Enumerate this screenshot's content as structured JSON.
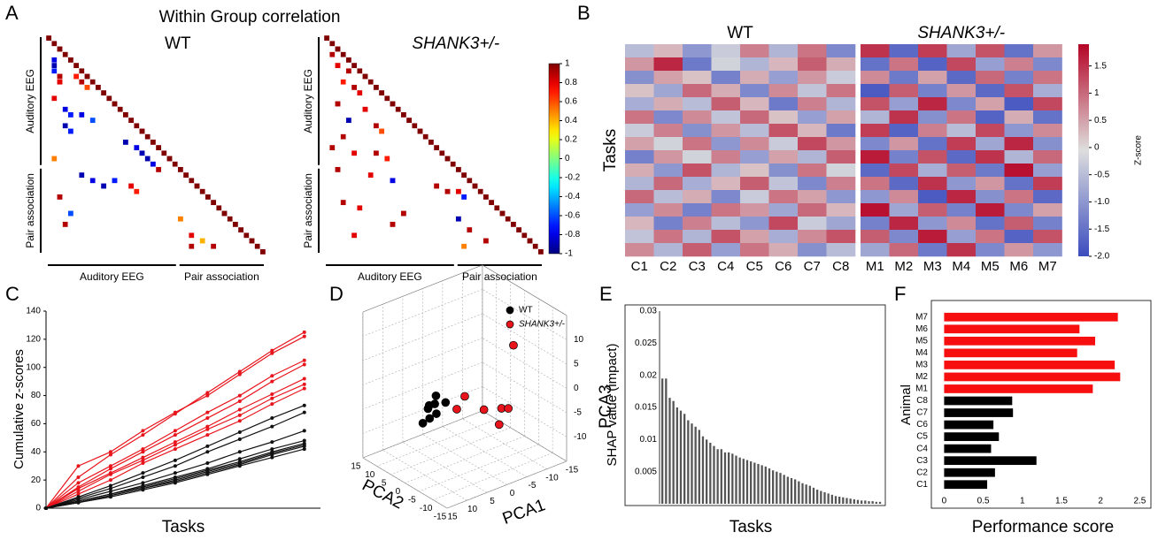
{
  "chart_data": [
    {
      "type": "triangle-heatmap",
      "label": "A",
      "title": "Within Group correlation",
      "size": 40,
      "diagonal": 1,
      "groups": [
        {
          "name": "Auditory EEG",
          "start": 0,
          "end": 24
        },
        {
          "name": "Pair association",
          "start": 24,
          "end": 40
        }
      ],
      "colorbar": {
        "lim": [
          -1,
          1
        ],
        "ticks": [
          1,
          0.8,
          0.6,
          0.4,
          0.2,
          0,
          -0.2,
          -0.4,
          -0.6,
          -0.8,
          -1
        ]
      },
      "matrices": [
        {
          "title": "WT",
          "italic": false,
          "cells": [
            [
              4,
              1,
              -0.8
            ],
            [
              5,
              1,
              -0.9
            ],
            [
              6,
              1,
              -0.7
            ],
            [
              7,
              2,
              0.9
            ],
            [
              8,
              2,
              0.8
            ],
            [
              7,
              5,
              0.7
            ],
            [
              8,
              6,
              0.9
            ],
            [
              9,
              7,
              0.6
            ],
            [
              11,
              1,
              0.8
            ],
            [
              13,
              3,
              -0.8
            ],
            [
              14,
              4,
              -0.7
            ],
            [
              14,
              6,
              -0.8
            ],
            [
              15,
              8,
              -0.6
            ],
            [
              16,
              3,
              -0.9
            ],
            [
              17,
              4,
              -0.7
            ],
            [
              19,
              14,
              -0.9
            ],
            [
              20,
              16,
              -0.8
            ],
            [
              21,
              17,
              -0.9
            ],
            [
              22,
              18,
              -0.9
            ],
            [
              23,
              19,
              -0.8
            ],
            [
              24,
              20,
              0.9
            ],
            [
              22,
              1,
              0.5
            ],
            [
              25,
              6,
              -0.9
            ],
            [
              26,
              8,
              -0.8
            ],
            [
              26,
              12,
              -0.7
            ],
            [
              27,
              10,
              -0.9
            ],
            [
              27,
              15,
              0.8
            ],
            [
              28,
              16,
              0.7
            ],
            [
              29,
              2,
              0.9
            ],
            [
              32,
              4,
              -0.6
            ],
            [
              34,
              3,
              0.9
            ],
            [
              36,
              26,
              0.8
            ],
            [
              37,
              28,
              0.4
            ],
            [
              38,
              26,
              0.9
            ],
            [
              38,
              30,
              0.9
            ],
            [
              33,
              24,
              0.5
            ]
          ]
        },
        {
          "title": "SHANK3+/-",
          "italic": true,
          "cells": [
            [
              3,
              1,
              0.9
            ],
            [
              5,
              2,
              0.8
            ],
            [
              6,
              4,
              0.9
            ],
            [
              8,
              3,
              0.7
            ],
            [
              9,
              5,
              0.9
            ],
            [
              10,
              6,
              0.8
            ],
            [
              12,
              2,
              0.9
            ],
            [
              13,
              7,
              0.8
            ],
            [
              15,
              4,
              -0.9
            ],
            [
              16,
              9,
              0.9
            ],
            [
              17,
              10,
              0.6
            ],
            [
              18,
              3,
              0.9
            ],
            [
              20,
              1,
              0.9
            ],
            [
              21,
              5,
              0.8
            ],
            [
              21,
              9,
              0.9
            ],
            [
              22,
              11,
              0.7
            ],
            [
              24,
              2,
              0.9
            ],
            [
              25,
              8,
              0.8
            ],
            [
              26,
              12,
              -0.8
            ],
            [
              27,
              20,
              0.9
            ],
            [
              28,
              22,
              0.9
            ],
            [
              28,
              24,
              0.8
            ],
            [
              29,
              25,
              -0.7
            ],
            [
              30,
              3,
              0.9
            ],
            [
              31,
              6,
              0.8
            ],
            [
              32,
              14,
              0.9
            ],
            [
              33,
              24,
              -0.9
            ],
            [
              34,
              12,
              0.9
            ],
            [
              35,
              26,
              0.9
            ],
            [
              36,
              5,
              0.8
            ],
            [
              37,
              29,
              0.9
            ],
            [
              38,
              25,
              0.5
            ]
          ]
        }
      ]
    },
    {
      "type": "heatmap",
      "label": "B",
      "ylabel": "Tasks",
      "groups": [
        {
          "title": "WT",
          "italic": false,
          "start": 0,
          "end": 8
        },
        {
          "title": "SHANK3+/-",
          "italic": true,
          "start": 8,
          "end": 15
        }
      ],
      "columns": [
        "C1",
        "C2",
        "C3",
        "C4",
        "C5",
        "C6",
        "C7",
        "C8",
        "M1",
        "M2",
        "M3",
        "M4",
        "M5",
        "M6",
        "M7"
      ],
      "colorbar": {
        "label": "Z-score",
        "lim": [
          -2,
          1.9
        ],
        "ticks": [
          1.5,
          1,
          0.5,
          0,
          -0.5,
          {
            "value": -1,
            "label": "-1.0"
          },
          -1.5,
          {
            "value": -2,
            "label": "-2.0"
          }
        ]
      },
      "rows": [
        [
          -0.5,
          0.3,
          -1.0,
          -0.3,
          0.8,
          -0.6,
          0.9,
          -1.2,
          1.5,
          -1.6,
          1.4,
          -0.8,
          1.2,
          -1.5,
          0.6
        ],
        [
          0.6,
          1.6,
          -1.4,
          -0.2,
          -0.6,
          0.3,
          1.1,
          0.4,
          -1.5,
          0.9,
          -1.7,
          1.3,
          -0.9,
          0.8,
          -1.2
        ],
        [
          -1.1,
          0.5,
          0.2,
          -1.3,
          0.4,
          -0.9,
          0.6,
          -0.3,
          0.7,
          -1.4,
          0.5,
          -1.6,
          1.0,
          -1.3,
          0.9
        ],
        [
          0.2,
          -0.8,
          1.0,
          0.4,
          -1.2,
          0.7,
          -0.4,
          0.9,
          -1.8,
          1.1,
          -1.3,
          0.6,
          -1.6,
          1.2,
          -0.7
        ],
        [
          -0.7,
          0.4,
          -0.5,
          1.1,
          0.3,
          -1.4,
          0.8,
          -0.6,
          1.2,
          -0.9,
          1.6,
          -1.2,
          0.5,
          -1.8,
          1.3
        ],
        [
          0.9,
          -1.2,
          0.7,
          -0.4,
          1.0,
          0.2,
          -0.9,
          0.5,
          -0.6,
          1.5,
          -1.1,
          0.9,
          -1.7,
          0.4,
          -1.5
        ],
        [
          -0.3,
          0.8,
          -1.1,
          0.6,
          -0.5,
          1.2,
          0.3,
          -1.4,
          1.4,
          -1.7,
          0.8,
          -0.5,
          1.3,
          -1.0,
          0.7
        ],
        [
          0.5,
          -0.2,
          0.9,
          -1.0,
          0.7,
          -0.3,
          1.3,
          0.6,
          -1.2,
          0.6,
          -1.5,
          1.4,
          -0.8,
          1.6,
          -1.1
        ],
        [
          -1.3,
          0.6,
          -0.2,
          0.8,
          -0.9,
          0.5,
          -0.6,
          1.1,
          1.7,
          -1.3,
          1.2,
          -1.6,
          1.5,
          -0.6,
          1.0
        ],
        [
          0.4,
          -1.0,
          1.2,
          -0.6,
          0.2,
          -1.1,
          0.9,
          -0.2,
          -1.6,
          1.3,
          -0.7,
          1.1,
          -1.4,
          1.8,
          -0.9
        ],
        [
          -0.6,
          1.0,
          -0.7,
          0.3,
          1.1,
          -0.4,
          -1.2,
          0.8,
          0.9,
          -1.6,
          1.5,
          -1.0,
          0.6,
          -1.5,
          1.4
        ],
        [
          1.0,
          -0.5,
          0.4,
          -1.2,
          -0.3,
          0.9,
          0.5,
          -1.0,
          -1.0,
          0.7,
          -1.8,
          1.6,
          -1.1,
          0.9,
          -1.6
        ],
        [
          -0.9,
          0.7,
          -1.3,
          0.9,
          0.6,
          -0.8,
          1.0,
          0.3,
          1.8,
          -0.8,
          1.1,
          -1.3,
          1.7,
          -1.2,
          0.5
        ],
        [
          0.3,
          -1.3,
          0.8,
          -0.5,
          -1.0,
          1.3,
          -0.3,
          -0.8,
          -1.3,
          1.6,
          -1.0,
          0.7,
          -1.5,
          1.1,
          -1.3
        ],
        [
          -0.4,
          0.9,
          -0.6,
          1.2,
          0.5,
          -0.7,
          0.7,
          1.2,
          1.1,
          -1.2,
          1.7,
          -0.9,
          0.9,
          -1.7,
          1.2
        ],
        [
          0.7,
          -0.6,
          1.1,
          -0.9,
          0.9,
          0.4,
          -1.1,
          -0.5,
          -0.8,
          1.0,
          -1.4,
          1.5,
          -1.2,
          0.6,
          -1.0
        ]
      ]
    },
    {
      "type": "line",
      "label": "C",
      "ylabel": "Cumulative z-scores",
      "xlabel": "Tasks",
      "x": [
        0,
        10,
        20,
        30,
        40,
        50,
        60,
        70,
        80
      ],
      "xlim": [
        0,
        85
      ],
      "ylim": [
        0,
        140
      ],
      "yticks": [
        0,
        20,
        40,
        60,
        80,
        100,
        120,
        140
      ],
      "series": [
        {
          "color": "#e8141c",
          "values": [
            0,
            22,
            38,
            52,
            67,
            82,
            97,
            112,
            125
          ]
        },
        {
          "color": "#e8141c",
          "values": [
            0,
            30,
            40,
            55,
            68,
            80,
            95,
            110,
            122
          ]
        },
        {
          "color": "#e8141c",
          "values": [
            0,
            18,
            30,
            42,
            55,
            68,
            80,
            94,
            105
          ]
        },
        {
          "color": "#e8141c",
          "values": [
            0,
            15,
            28,
            40,
            52,
            64,
            76,
            90,
            102
          ]
        },
        {
          "color": "#e8141c",
          "values": [
            0,
            14,
            25,
            36,
            47,
            58,
            70,
            81,
            92
          ]
        },
        {
          "color": "#e8141c",
          "values": [
            0,
            12,
            24,
            34,
            45,
            56,
            66,
            78,
            88
          ]
        },
        {
          "color": "#e8141c",
          "values": [
            0,
            10,
            20,
            32,
            42,
            52,
            62,
            74,
            85
          ]
        },
        {
          "color": "#111111",
          "values": [
            0,
            8,
            16,
            25,
            34,
            44,
            54,
            64,
            73
          ]
        },
        {
          "color": "#111111",
          "values": [
            0,
            7,
            14,
            22,
            30,
            40,
            49,
            58,
            68
          ]
        },
        {
          "color": "#111111",
          "values": [
            0,
            6,
            12,
            18,
            25,
            32,
            40,
            47,
            55
          ]
        },
        {
          "color": "#111111",
          "values": [
            0,
            5,
            10,
            16,
            22,
            28,
            35,
            42,
            48
          ]
        },
        {
          "color": "#111111",
          "values": [
            0,
            5,
            10,
            15,
            21,
            27,
            33,
            40,
            46
          ]
        },
        {
          "color": "#111111",
          "values": [
            0,
            4,
            9,
            14,
            20,
            26,
            32,
            39,
            45
          ]
        },
        {
          "color": "#111111",
          "values": [
            0,
            4,
            9,
            14,
            19,
            25,
            31,
            38,
            44
          ]
        },
        {
          "color": "#111111",
          "values": [
            0,
            4,
            8,
            13,
            18,
            24,
            30,
            36,
            42
          ]
        }
      ]
    },
    {
      "type": "scatter3d",
      "label": "D",
      "xlabel": "PCA1",
      "ylabel": "PCA2",
      "zlabel": "PCA3",
      "xlim": [
        -15,
        15
      ],
      "ylim": [
        -15,
        15
      ],
      "zlim": [
        -15,
        15
      ],
      "xticks": [
        15,
        10,
        5,
        0,
        -5,
        -10,
        -15
      ],
      "yticks": [
        15,
        10,
        5,
        0,
        -5,
        -10,
        -15
      ],
      "zticks": [
        10,
        5,
        0,
        -5,
        -10
      ],
      "series": [
        {
          "name": "WT",
          "color": "#000000",
          "italic": false,
          "x": [
            4,
            5,
            6,
            3,
            5,
            7,
            2,
            4
          ],
          "y": [
            5,
            6,
            4,
            6,
            3,
            5,
            4,
            7
          ],
          "z": [
            -4,
            -5,
            -6,
            -3,
            -5,
            -7,
            -4,
            -5
          ]
        },
        {
          "name": "SHANK3+/-",
          "color": "#e8141c",
          "italic": true,
          "x": [
            -8,
            0,
            2,
            -2,
            -5,
            -6,
            -3
          ],
          "y": [
            -6,
            0,
            0,
            -4,
            -6,
            -7,
            -8
          ],
          "z": [
            8,
            -2,
            -4,
            -4,
            -4,
            -4,
            -6
          ]
        }
      ]
    },
    {
      "type": "bar",
      "label": "E",
      "ylabel": "SHAP value (impact)",
      "xlabel": "Tasks",
      "color": "#555555",
      "ylim": [
        0,
        0.03
      ],
      "yticks": [
        0.005,
        0.01,
        0.015,
        0.02,
        0.025,
        0.03
      ],
      "values": [
        0.0195,
        0.0195,
        0.0165,
        0.016,
        0.015,
        0.0145,
        0.014,
        0.013,
        0.0125,
        0.012,
        0.0115,
        0.0105,
        0.01,
        0.0095,
        0.009,
        0.0085,
        0.0085,
        0.008,
        0.008,
        0.0078,
        0.0075,
        0.0072,
        0.007,
        0.0068,
        0.0066,
        0.0064,
        0.0062,
        0.006,
        0.0058,
        0.0055,
        0.0052,
        0.005,
        0.0048,
        0.0045,
        0.0042,
        0.004,
        0.0038,
        0.0035,
        0.0032,
        0.003,
        0.0028,
        0.0025,
        0.0022,
        0.002,
        0.0018,
        0.0016,
        0.0014,
        0.0012,
        0.0011,
        0.001,
        0.0009,
        0.0008,
        0.0007,
        0.0006,
        0.0005,
        0.0005,
        0.0004,
        0.0004,
        0.0003,
        0.0003
      ]
    },
    {
      "type": "hbar",
      "label": "F",
      "ylabel": "Animal",
      "xlabel": "Performance score",
      "categories": [
        "C1",
        "C2",
        "C3",
        "C4",
        "C5",
        "C6",
        "C7",
        "C8",
        "M1",
        "M2",
        "M3",
        "M4",
        "M5",
        "M6",
        "M7"
      ],
      "values": [
        0.55,
        0.65,
        1.18,
        0.6,
        0.7,
        0.63,
        0.88,
        0.87,
        1.9,
        2.25,
        2.18,
        1.7,
        1.93,
        1.73,
        2.22
      ],
      "colors": [
        "#000000",
        "#000000",
        "#000000",
        "#000000",
        "#000000",
        "#000000",
        "#000000",
        "#000000",
        "#f70f0f",
        "#f70f0f",
        "#f70f0f",
        "#f70f0f",
        "#f70f0f",
        "#f70f0f",
        "#f70f0f"
      ],
      "xlim": [
        -0.05,
        2.62
      ],
      "xticks": [
        0,
        0.5,
        1,
        1.5,
        2,
        2.5
      ]
    }
  ]
}
